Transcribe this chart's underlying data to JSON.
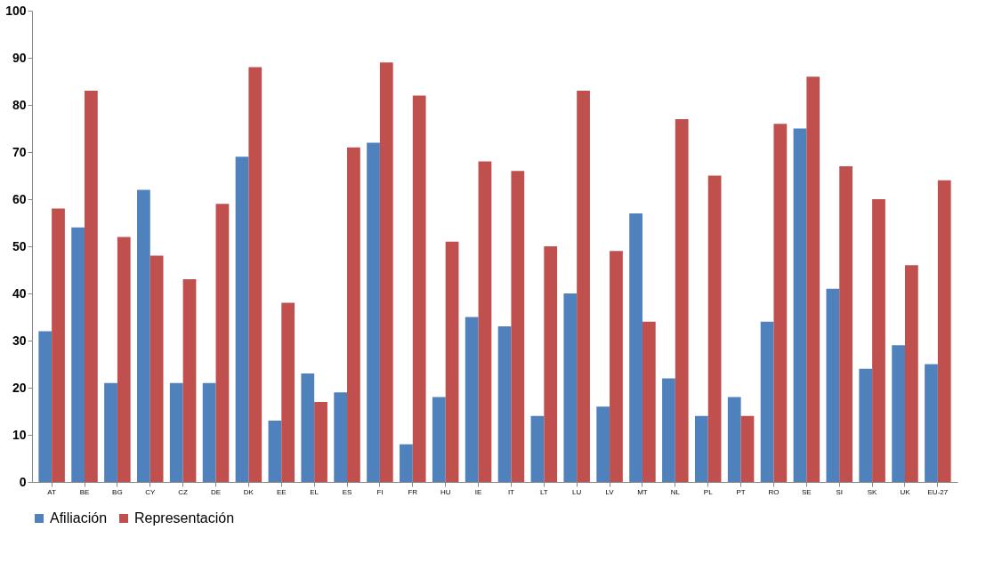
{
  "chart_data": {
    "type": "bar",
    "categories": [
      "AT",
      "BE",
      "BG",
      "CY",
      "CZ",
      "DE",
      "DK",
      "EE",
      "EL",
      "ES",
      "FI",
      "FR",
      "HU",
      "IE",
      "IT",
      "LT",
      "LU",
      "LV",
      "MT",
      "NL",
      "PL",
      "PT",
      "RO",
      "SE",
      "SI",
      "SK",
      "UK",
      "EU-27"
    ],
    "series": [
      {
        "name": "Afiliación",
        "color": "#4f81bd",
        "values": [
          32,
          54,
          21,
          62,
          21,
          21,
          69,
          13,
          23,
          19,
          72,
          8,
          18,
          35,
          33,
          14,
          40,
          16,
          57,
          22,
          14,
          18,
          34,
          75,
          41,
          24,
          29,
          25
        ]
      },
      {
        "name": "Representación",
        "color": "#c0504d",
        "values": [
          58,
          83,
          52,
          48,
          43,
          59,
          88,
          38,
          17,
          71,
          89,
          82,
          51,
          68,
          66,
          50,
          83,
          49,
          34,
          77,
          65,
          14,
          76,
          86,
          67,
          60,
          46,
          64
        ]
      }
    ],
    "ylim": [
      0,
      100
    ],
    "yticks": [
      0,
      10,
      20,
      30,
      40,
      50,
      60,
      70,
      80,
      90,
      100
    ],
    "grid": false,
    "legend": "bottom"
  }
}
